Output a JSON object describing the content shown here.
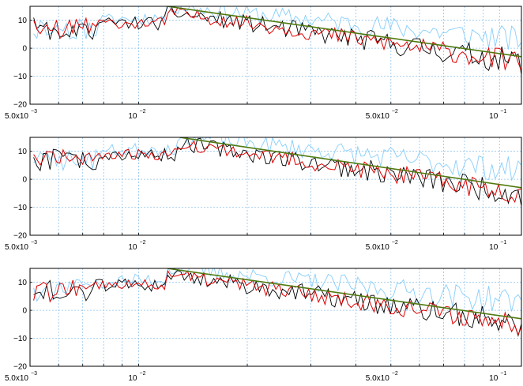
{
  "chart_data": [
    {
      "type": "line",
      "xscale": "log",
      "xlim": [
        0.005,
        0.115
      ],
      "ylim": [
        -20,
        15
      ],
      "grid": true,
      "yticks": [
        -20,
        -10,
        0,
        10
      ],
      "xtick_labels": [
        {
          "value": 0.005,
          "mantissa": "5.0x10",
          "exp": "−3"
        },
        {
          "value": 0.01,
          "mantissa": "10",
          "exp": "−2"
        },
        {
          "value": 0.05,
          "mantissa": "5.0x10",
          "exp": "−2"
        },
        {
          "value": 0.1,
          "mantissa": "10",
          "exp": "−1"
        }
      ],
      "series_colors": [
        "#87cefa",
        "#000000",
        "#dd0000",
        "#4f7a10"
      ],
      "trend": {
        "x": [
          0.012,
          0.115
        ],
        "y": [
          15,
          -3
        ]
      },
      "noise_seed": 11
    },
    {
      "type": "line",
      "xscale": "log",
      "xlim": [
        0.005,
        0.115
      ],
      "ylim": [
        -20,
        15
      ],
      "grid": true,
      "yticks": [
        -20,
        -10,
        0,
        10
      ],
      "xtick_labels": [
        {
          "value": 0.005,
          "mantissa": "5.0x10",
          "exp": "−3"
        },
        {
          "value": 0.01,
          "mantissa": "10",
          "exp": "−2"
        },
        {
          "value": 0.05,
          "mantissa": "5.0x10",
          "exp": "−2"
        },
        {
          "value": 0.1,
          "mantissa": "10",
          "exp": "−1"
        }
      ],
      "series_colors": [
        "#87cefa",
        "#000000",
        "#dd0000",
        "#4f7a10"
      ],
      "trend": {
        "x": [
          0.013,
          0.115
        ],
        "y": [
          15,
          -3
        ]
      },
      "noise_seed": 23
    },
    {
      "type": "line",
      "xscale": "log",
      "xlim": [
        0.005,
        0.115
      ],
      "ylim": [
        -20,
        15
      ],
      "grid": true,
      "yticks": [
        -20,
        -10,
        0,
        10
      ],
      "xtick_labels": [
        {
          "value": 0.005,
          "mantissa": "5.0x10",
          "exp": "−3"
        },
        {
          "value": 0.01,
          "mantissa": "10",
          "exp": "−2"
        },
        {
          "value": 0.05,
          "mantissa": "5.0x10",
          "exp": "−2"
        },
        {
          "value": 0.1,
          "mantissa": "10",
          "exp": "−1"
        }
      ],
      "series_colors": [
        "#87cefa",
        "#000000",
        "#dd0000",
        "#4f7a10"
      ],
      "trend": {
        "x": [
          0.012,
          0.115
        ],
        "y": [
          15,
          -3
        ]
      },
      "noise_seed": 37
    }
  ]
}
